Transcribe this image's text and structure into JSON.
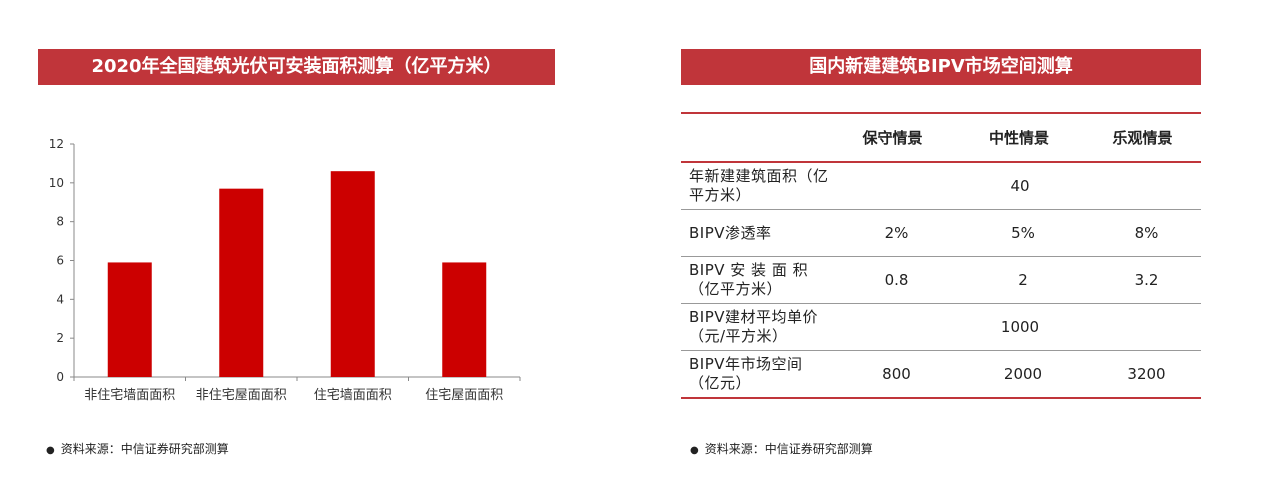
{
  "left_panel": {
    "title": "2020年全国建筑光伏可安装面积测算（亿平方米）",
    "source": "资料来源：中信证券研究部测算"
  },
  "chart_data": {
    "type": "bar",
    "title": "2020年全国建筑光伏可安装面积测算（亿平方米）",
    "categories": [
      "非住宅墙面面积",
      "非住宅屋面面积",
      "住宅墙面面积",
      "住宅屋面面积"
    ],
    "values": [
      5.9,
      9.7,
      10.6,
      5.9
    ],
    "ylim": [
      0,
      12
    ],
    "yticks": [
      0,
      2,
      4,
      6,
      8,
      10,
      12
    ],
    "xlabel": "",
    "ylabel": "",
    "grid": false,
    "bar_color": "#cc0000"
  },
  "right_panel": {
    "title": "国内新建建筑BIPV市场空间测算",
    "source": "资料来源：中信证券研究部测算",
    "table": {
      "headers": [
        "",
        "保守情景",
        "中性情景",
        "乐观情景"
      ],
      "rows": [
        {
          "label": "年新建建筑面积（亿平方米）",
          "merged": "40"
        },
        {
          "label": "BIPV渗透率",
          "values": [
            "2%",
            "5%",
            "8%"
          ]
        },
        {
          "label": "BIPV 安 装 面 积（亿平方米）",
          "values": [
            "0.8",
            "2",
            "3.2"
          ]
        },
        {
          "label": "BIPV建材平均单价（元/平方米）",
          "merged": "1000"
        },
        {
          "label": "BIPV年市场空间（亿元）",
          "values": [
            "800",
            "2000",
            "3200"
          ]
        }
      ]
    }
  },
  "colors": {
    "accent": "#c0353a",
    "bar": "#cc0000"
  }
}
